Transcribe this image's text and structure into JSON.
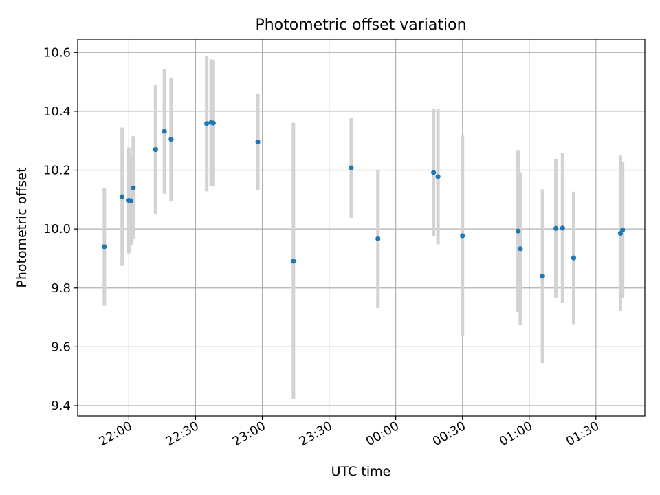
{
  "chart_data": {
    "type": "scatter",
    "title": "Photometric offset variation",
    "xlabel": "UTC time",
    "ylabel": "Photometric offset",
    "x_unit": "UTC time (HH:MM), 21:45 to 01:43 the next day",
    "xlim": [
      "21:37",
      "01:52"
    ],
    "ylim": [
      9.365,
      10.645
    ],
    "grid": true,
    "x_ticks": [
      "22:00",
      "22:30",
      "23:00",
      "23:30",
      "00:00",
      "00:30",
      "01:00",
      "01:30"
    ],
    "y_ticks": [
      "9.4",
      "9.6",
      "9.8",
      "10.0",
      "10.2",
      "10.4",
      "10.6"
    ],
    "colors": {
      "point": "#1f77b4",
      "errorbar": "#d3d3d3",
      "grid": "#b0b0b0"
    },
    "series": [
      {
        "points": [
          {
            "x": "21:49",
            "y": 9.94,
            "ylow": 9.74,
            "yhigh": 10.14
          },
          {
            "x": "21:57",
            "y": 10.11,
            "ylow": 9.875,
            "yhigh": 10.345
          },
          {
            "x": "22:00",
            "y": 10.097,
            "ylow": 9.917,
            "yhigh": 10.277
          },
          {
            "x": "22:01",
            "y": 10.096,
            "ylow": 9.946,
            "yhigh": 10.246
          },
          {
            "x": "22:02",
            "y": 10.14,
            "ylow": 9.965,
            "yhigh": 10.315
          },
          {
            "x": "22:12",
            "y": 10.27,
            "ylow": 10.05,
            "yhigh": 10.49
          },
          {
            "x": "22:16",
            "y": 10.332,
            "ylow": 10.12,
            "yhigh": 10.544
          },
          {
            "x": "22:19",
            "y": 10.305,
            "ylow": 10.095,
            "yhigh": 10.515
          },
          {
            "x": "22:35",
            "y": 10.358,
            "ylow": 10.128,
            "yhigh": 10.588
          },
          {
            "x": "22:37",
            "y": 10.362,
            "ylow": 10.147,
            "yhigh": 10.577
          },
          {
            "x": "22:38",
            "y": 10.36,
            "ylow": 10.145,
            "yhigh": 10.575
          },
          {
            "x": "22:58",
            "y": 10.296,
            "ylow": 10.131,
            "yhigh": 10.461
          },
          {
            "x": "23:14",
            "y": 9.891,
            "ylow": 9.421,
            "yhigh": 10.361
          },
          {
            "x": "23:40",
            "y": 10.208,
            "ylow": 10.038,
            "yhigh": 10.378
          },
          {
            "x": "23:52",
            "y": 9.967,
            "ylow": 9.732,
            "yhigh": 10.202
          },
          {
            "x": "00:17",
            "y": 10.192,
            "ylow": 9.977,
            "yhigh": 10.407
          },
          {
            "x": "00:19",
            "y": 10.178,
            "ylow": 9.948,
            "yhigh": 10.408
          },
          {
            "x": "00:30",
            "y": 9.977,
            "ylow": 9.637,
            "yhigh": 10.317
          },
          {
            "x": "00:55",
            "y": 9.993,
            "ylow": 9.718,
            "yhigh": 10.268
          },
          {
            "x": "00:56",
            "y": 9.933,
            "ylow": 9.673,
            "yhigh": 10.193
          },
          {
            "x": "01:06",
            "y": 9.84,
            "ylow": 9.545,
            "yhigh": 10.135
          },
          {
            "x": "01:06",
            "y": 9.84,
            "ylow": 9.565,
            "yhigh": 10.115
          },
          {
            "x": "01:12",
            "y": 10.002,
            "ylow": 9.765,
            "yhigh": 10.239
          },
          {
            "x": "01:15",
            "y": 10.003,
            "ylow": 9.748,
            "yhigh": 10.258
          },
          {
            "x": "01:20",
            "y": 9.902,
            "ylow": 9.677,
            "yhigh": 10.127
          },
          {
            "x": "01:41",
            "y": 9.985,
            "ylow": 9.72,
            "yhigh": 10.25
          },
          {
            "x": "01:42",
            "y": 9.997,
            "ylow": 9.767,
            "yhigh": 10.227
          }
        ]
      }
    ]
  }
}
